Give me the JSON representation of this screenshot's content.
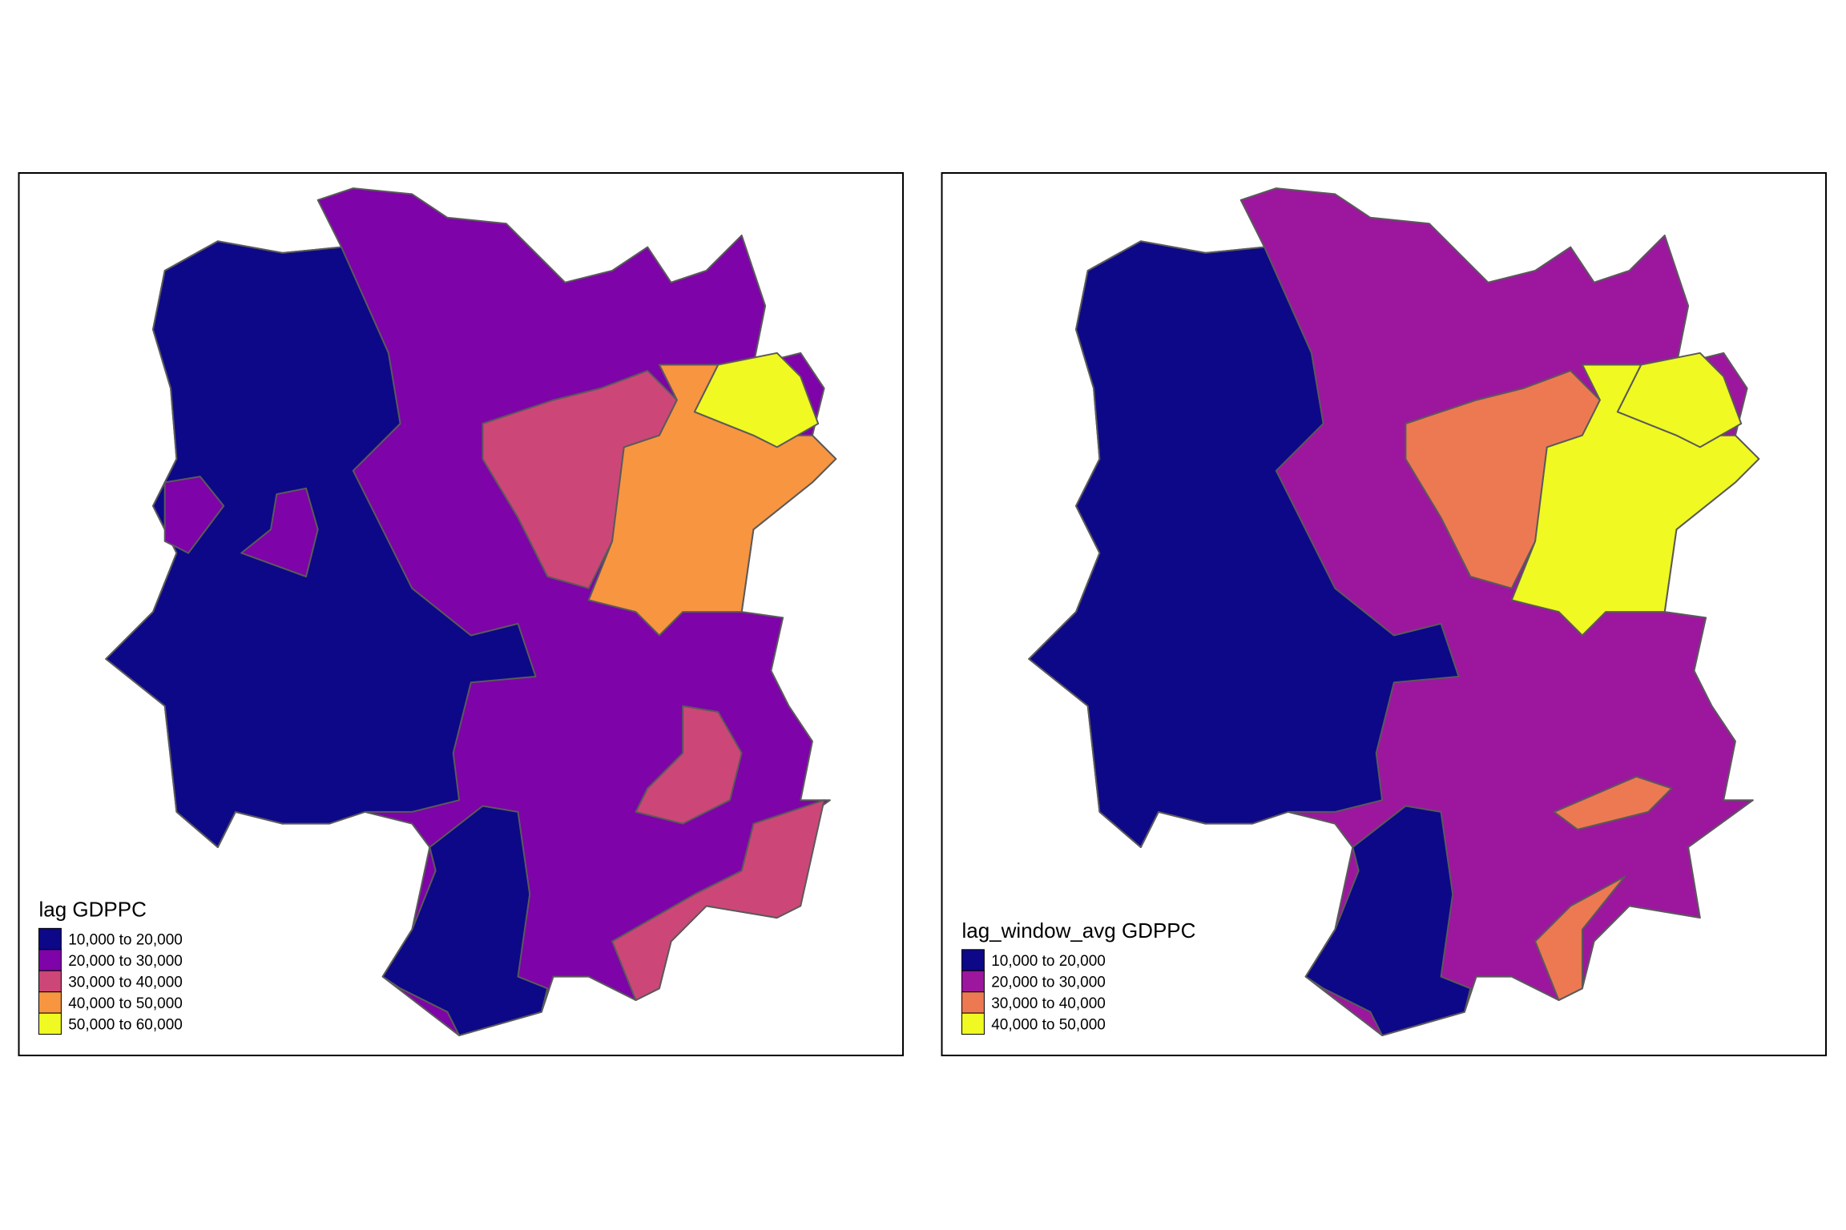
{
  "panels": [
    {
      "legend": {
        "title": "lag GDPPC",
        "items": [
          {
            "label": "10,000 to 20,000",
            "color": "#0d0887"
          },
          {
            "label": "20,000 to 30,000",
            "color": "#7e03a8"
          },
          {
            "label": "30,000 to 40,000",
            "color": "#cc4778"
          },
          {
            "label": "40,000 to 50,000",
            "color": "#f89540"
          },
          {
            "label": "50,000 to 60,000",
            "color": "#f0f921"
          }
        ]
      }
    },
    {
      "legend": {
        "title": "lag_window_avg GDPPC",
        "items": [
          {
            "label": "10,000 to 20,000",
            "color": "#0d0887"
          },
          {
            "label": "20,000 to 30,000",
            "color": "#9c179e"
          },
          {
            "label": "30,000 to 40,000",
            "color": "#ed7953"
          },
          {
            "label": "40,000 to 50,000",
            "color": "#f0f921"
          }
        ]
      }
    }
  ]
}
